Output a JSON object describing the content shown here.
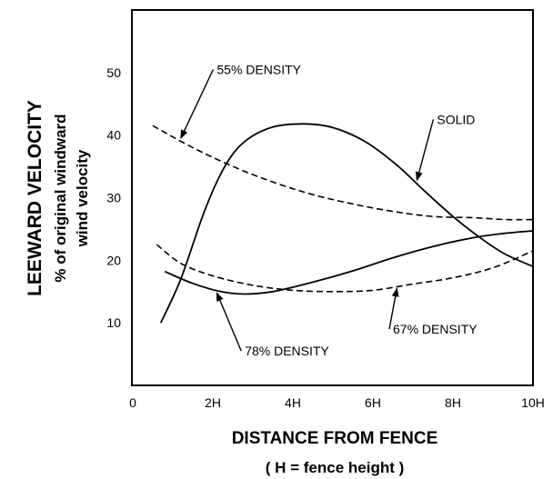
{
  "chart_data": {
    "type": "line",
    "x_axis": {
      "label": "DISTANCE FROM FENCE",
      "sublabel": "( H = fence height )",
      "range": [
        0,
        10
      ],
      "ticks": [
        {
          "value": 0,
          "label": "0"
        },
        {
          "value": 2,
          "label": "2H"
        },
        {
          "value": 4,
          "label": "4H"
        },
        {
          "value": 6,
          "label": "6H"
        },
        {
          "value": 8,
          "label": "8H"
        },
        {
          "value": 10,
          "label": "10H"
        }
      ]
    },
    "y_axis": {
      "label": "LEEWARD VELOCITY",
      "sublabel_1": "% of original windward",
      "sublabel_2": "wind velocity",
      "range": [
        0,
        60
      ],
      "ticks": [
        10,
        20,
        30,
        40,
        50
      ]
    },
    "grid": false,
    "legend": "none",
    "series": [
      {
        "name": "SOLID",
        "style": "solid",
        "points": [
          [
            0.7,
            10
          ],
          [
            1.2,
            17
          ],
          [
            1.8,
            28
          ],
          [
            2.3,
            35
          ],
          [
            2.8,
            39
          ],
          [
            3.5,
            41.3
          ],
          [
            4.3,
            41.8
          ],
          [
            5.0,
            41.2
          ],
          [
            5.8,
            39
          ],
          [
            6.6,
            35.2
          ],
          [
            7.3,
            31
          ],
          [
            8.0,
            27
          ],
          [
            8.7,
            23.5
          ],
          [
            9.3,
            21
          ],
          [
            10.0,
            19
          ]
        ]
      },
      {
        "name": "55% DENSITY",
        "style": "dashed",
        "points": [
          [
            0.5,
            41.5
          ],
          [
            1.5,
            38
          ],
          [
            2.5,
            35
          ],
          [
            3.5,
            32.5
          ],
          [
            4.5,
            30.5
          ],
          [
            5.5,
            29
          ],
          [
            6.5,
            27.8
          ],
          [
            7.5,
            27
          ],
          [
            8.5,
            26.8
          ],
          [
            9.3,
            26.5
          ],
          [
            10.0,
            26.5
          ]
        ]
      },
      {
        "name": "67% DENSITY",
        "style": "dashed",
        "points": [
          [
            0.6,
            22.5
          ],
          [
            1.2,
            19.5
          ],
          [
            2.0,
            17.5
          ],
          [
            3.0,
            16
          ],
          [
            4.0,
            15.2
          ],
          [
            5.0,
            15
          ],
          [
            6.0,
            15.2
          ],
          [
            7.0,
            16.2
          ],
          [
            8.0,
            17.2
          ],
          [
            9.0,
            18.8
          ],
          [
            10.0,
            21.5
          ]
        ]
      },
      {
        "name": "78% DENSITY",
        "style": "solid",
        "points": [
          [
            0.8,
            18.2
          ],
          [
            1.5,
            16.3
          ],
          [
            2.2,
            15
          ],
          [
            2.8,
            14.6
          ],
          [
            3.5,
            15
          ],
          [
            4.5,
            16.5
          ],
          [
            5.5,
            18.3
          ],
          [
            6.5,
            20.4
          ],
          [
            7.5,
            22.2
          ],
          [
            8.5,
            23.6
          ],
          [
            9.3,
            24.3
          ],
          [
            10.0,
            24.7
          ]
        ]
      }
    ],
    "annotations": [
      {
        "text": "55% DENSITY",
        "series": "55% DENSITY",
        "label_at": [
          2.1,
          50.5
        ],
        "arrow_to": [
          1.2,
          39.5
        ]
      },
      {
        "text": "SOLID",
        "series": "SOLID",
        "label_at": [
          7.6,
          42.5
        ],
        "arrow_to": [
          7.1,
          32.8
        ]
      },
      {
        "text": "67% DENSITY",
        "series": "67% DENSITY",
        "label_at": [
          6.5,
          9.0
        ],
        "arrow_to": [
          6.6,
          15.5
        ]
      },
      {
        "text": "78% DENSITY",
        "series": "78% DENSITY",
        "label_at": [
          2.8,
          5.5
        ],
        "arrow_to": [
          2.1,
          14.8
        ]
      }
    ]
  }
}
